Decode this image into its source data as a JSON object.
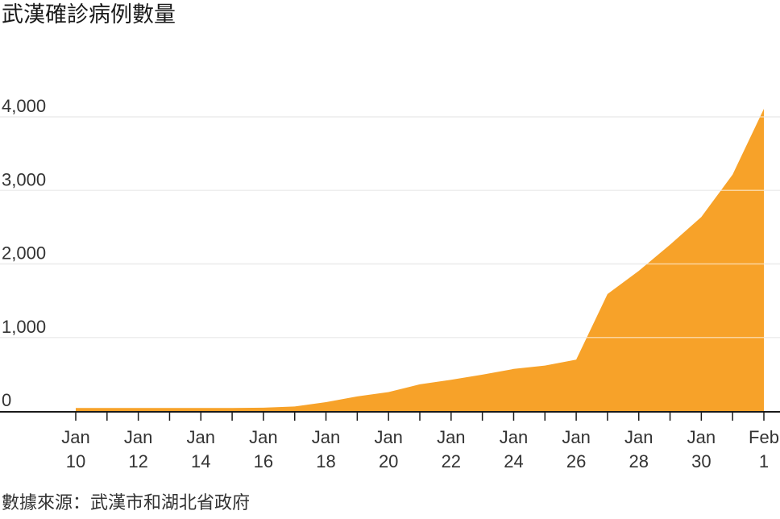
{
  "chart_data": {
    "type": "area",
    "title": "武漢確診病例數量",
    "source": "數據來源：武漢市和湖北省政府",
    "x": [
      "Jan 10",
      "Jan 11",
      "Jan 12",
      "Jan 13",
      "Jan 14",
      "Jan 15",
      "Jan 16",
      "Jan 17",
      "Jan 18",
      "Jan 19",
      "Jan 20",
      "Jan 21",
      "Jan 22",
      "Jan 23",
      "Jan 24",
      "Jan 25",
      "Jan 26",
      "Jan 27",
      "Jan 28",
      "Jan 29",
      "Jan 30",
      "Jan 31",
      "Feb 1"
    ],
    "series": [
      {
        "values": [
          41,
          41,
          41,
          41,
          41,
          41,
          45,
          62,
          121,
          198,
          258,
          363,
          425,
          495,
          572,
          618,
          698,
          1590,
          1905,
          2261,
          2639,
          3215,
          4109
        ]
      }
    ],
    "ylim": [
      0,
      4200
    ],
    "y_ticks": [
      {
        "value": 0,
        "label": "0"
      },
      {
        "value": 1000,
        "label": "1,000"
      },
      {
        "value": 2000,
        "label": "2,000"
      },
      {
        "value": 3000,
        "label": "3,000"
      },
      {
        "value": 4000,
        "label": "4,000"
      }
    ],
    "x_tick_labels": [
      {
        "index": 0,
        "line1": "Jan",
        "line2": "10"
      },
      {
        "index": 2,
        "line1": "Jan",
        "line2": "12"
      },
      {
        "index": 4,
        "line1": "Jan",
        "line2": "14"
      },
      {
        "index": 6,
        "line1": "Jan",
        "line2": "16"
      },
      {
        "index": 8,
        "line1": "Jan",
        "line2": "18"
      },
      {
        "index": 10,
        "line1": "Jan",
        "line2": "20"
      },
      {
        "index": 12,
        "line1": "Jan",
        "line2": "22"
      },
      {
        "index": 14,
        "line1": "Jan",
        "line2": "24"
      },
      {
        "index": 16,
        "line1": "Jan",
        "line2": "26"
      },
      {
        "index": 18,
        "line1": "Jan",
        "line2": "28"
      },
      {
        "index": 20,
        "line1": "Jan",
        "line2": "30"
      },
      {
        "index": 22,
        "line1": "Feb",
        "line2": "1"
      }
    ],
    "grid": true,
    "colors": {
      "area": "#f7a229",
      "grid": "#d9d9d9",
      "axis": "#1a1a1a"
    }
  }
}
